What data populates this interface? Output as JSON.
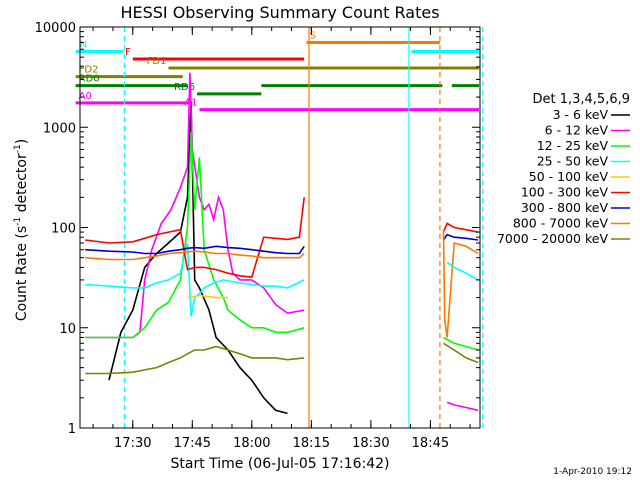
{
  "chart_data": {
    "type": "line",
    "title": "HESSI Observing Summary Count Rates",
    "xlabel": "Start Time (06-Jul-05 17:16:42)",
    "ylabel": "Count Rate (s⁻¹ detector⁻¹)",
    "ylabel_main": "Count Rate (s",
    "ylabel_exp1": "-1",
    "ylabel_mid": " detector",
    "ylabel_exp2": "-1",
    "ylabel_end": ")",
    "yscale": "log",
    "ylim": [
      1,
      10000
    ],
    "xlim": [
      "17:16:42",
      "18:57:30"
    ],
    "xticks": [
      "17:30",
      "17:45",
      "18:00",
      "18:15",
      "18:30",
      "18:45"
    ],
    "yticks": [
      "1",
      "10",
      "100",
      "1000",
      "10000"
    ],
    "legend_title": "Det 1,3,4,5,6,9",
    "legend_placement": "right",
    "footer": "1-Apr-2010 19:12",
    "series": [
      {
        "name": "3 - 6 keV",
        "color": "#000000",
        "points": [
          [
            17.3,
            null
          ],
          [
            17.4,
            3
          ],
          [
            17.45,
            9
          ],
          [
            17.5,
            15
          ],
          [
            17.55,
            40
          ],
          [
            17.6,
            55
          ],
          [
            17.65,
            70
          ],
          [
            17.7,
            90
          ],
          [
            17.73,
            200
          ],
          [
            17.745,
            1800
          ],
          [
            17.76,
            30
          ],
          [
            17.78,
            25
          ],
          [
            17.82,
            15
          ],
          [
            17.85,
            8
          ],
          [
            17.9,
            6
          ],
          [
            17.95,
            4
          ],
          [
            18.0,
            3
          ],
          [
            18.05,
            2
          ],
          [
            18.1,
            1.5
          ],
          [
            18.15,
            1.4
          ],
          [
            18.22,
            null
          ]
        ]
      },
      {
        "name": "6 - 12 keV",
        "color": "#ff00ff",
        "points": [
          [
            17.3,
            8
          ],
          [
            17.5,
            8
          ],
          [
            17.53,
            9
          ],
          [
            17.55,
            30
          ],
          [
            17.58,
            60
          ],
          [
            17.62,
            110
          ],
          [
            17.66,
            150
          ],
          [
            17.7,
            250
          ],
          [
            17.73,
            400
          ],
          [
            17.74,
            3500
          ],
          [
            17.75,
            600
          ],
          [
            17.78,
            200
          ],
          [
            17.8,
            150
          ],
          [
            17.82,
            170
          ],
          [
            17.84,
            120
          ],
          [
            17.86,
            200
          ],
          [
            17.88,
            150
          ],
          [
            17.9,
            60
          ],
          [
            17.92,
            35
          ],
          [
            17.95,
            30
          ],
          [
            18.0,
            30
          ],
          [
            18.05,
            25
          ],
          [
            18.1,
            17
          ],
          [
            18.15,
            14
          ],
          [
            18.22,
            15
          ]
        ]
      },
      {
        "name": "12 - 25 keV",
        "color": "#00ff00",
        "points": [
          [
            17.3,
            8
          ],
          [
            17.4,
            8
          ],
          [
            17.5,
            8
          ],
          [
            17.55,
            10
          ],
          [
            17.6,
            15
          ],
          [
            17.65,
            18
          ],
          [
            17.7,
            30
          ],
          [
            17.73,
            100
          ],
          [
            17.745,
            900
          ],
          [
            17.76,
            150
          ],
          [
            17.78,
            500
          ],
          [
            17.8,
            60
          ],
          [
            17.84,
            30
          ],
          [
            17.88,
            20
          ],
          [
            17.9,
            15
          ],
          [
            17.95,
            12
          ],
          [
            18.0,
            10
          ],
          [
            18.05,
            10
          ],
          [
            18.1,
            9
          ],
          [
            18.15,
            9
          ],
          [
            18.22,
            10
          ]
        ]
      },
      {
        "name": "25 - 50 keV",
        "color": "#00ffff",
        "points": [
          [
            17.3,
            27
          ],
          [
            17.4,
            26
          ],
          [
            17.5,
            25
          ],
          [
            17.55,
            25
          ],
          [
            17.6,
            28
          ],
          [
            17.65,
            30
          ],
          [
            17.7,
            35
          ],
          [
            17.73,
            70
          ],
          [
            17.745,
            13
          ],
          [
            17.76,
            20
          ],
          [
            17.78,
            22
          ],
          [
            17.8,
            25
          ],
          [
            17.84,
            28
          ],
          [
            17.88,
            30
          ],
          [
            17.95,
            28
          ],
          [
            18.0,
            27
          ],
          [
            18.05,
            26
          ],
          [
            18.1,
            26
          ],
          [
            18.15,
            25
          ],
          [
            18.22,
            30
          ]
        ]
      },
      {
        "name": "50 - 100 keV",
        "color": "#ffcc00",
        "points": [
          [
            17.73,
            20
          ],
          [
            17.78,
            21
          ],
          [
            17.85,
            20
          ],
          [
            17.9,
            20
          ]
        ]
      },
      {
        "name": "100 - 300 keV",
        "color": "#ff0000",
        "points": [
          [
            17.3,
            75
          ],
          [
            17.4,
            70
          ],
          [
            17.5,
            72
          ],
          [
            17.55,
            78
          ],
          [
            17.6,
            85
          ],
          [
            17.65,
            90
          ],
          [
            17.7,
            95
          ],
          [
            17.73,
            38
          ],
          [
            17.76,
            40
          ],
          [
            17.8,
            40
          ],
          [
            17.85,
            38
          ],
          [
            17.9,
            35
          ],
          [
            17.95,
            33
          ],
          [
            18.0,
            32
          ],
          [
            18.05,
            80
          ],
          [
            18.1,
            78
          ],
          [
            18.15,
            76
          ],
          [
            18.2,
            80
          ],
          [
            18.22,
            200
          ]
        ]
      },
      {
        "name": "300 - 800 keV",
        "color": "#0000cc",
        "points": [
          [
            17.3,
            60
          ],
          [
            17.4,
            58
          ],
          [
            17.5,
            57
          ],
          [
            17.55,
            55
          ],
          [
            17.6,
            55
          ],
          [
            17.65,
            58
          ],
          [
            17.7,
            60
          ],
          [
            17.73,
            62
          ],
          [
            17.76,
            63
          ],
          [
            17.8,
            62
          ],
          [
            17.85,
            65
          ],
          [
            17.9,
            63
          ],
          [
            17.95,
            62
          ],
          [
            18.0,
            60
          ],
          [
            18.05,
            58
          ],
          [
            18.1,
            56
          ],
          [
            18.15,
            55
          ],
          [
            18.2,
            55
          ],
          [
            18.22,
            65
          ]
        ]
      },
      {
        "name": "800 - 7000 keV",
        "color": "#ff7700",
        "points": [
          [
            17.3,
            50
          ],
          [
            17.4,
            48
          ],
          [
            17.5,
            48
          ],
          [
            17.55,
            50
          ],
          [
            17.6,
            52
          ],
          [
            17.65,
            55
          ],
          [
            17.7,
            56
          ],
          [
            17.73,
            57
          ],
          [
            17.76,
            58
          ],
          [
            17.8,
            57
          ],
          [
            17.85,
            55
          ],
          [
            17.9,
            55
          ],
          [
            17.95,
            53
          ],
          [
            18.0,
            52
          ],
          [
            18.05,
            50
          ],
          [
            18.1,
            50
          ],
          [
            18.15,
            50
          ],
          [
            18.2,
            50
          ],
          [
            18.22,
            55
          ]
        ]
      },
      {
        "name": "7000 - 20000 keV",
        "color": "#808000",
        "points": [
          [
            17.3,
            3.5
          ],
          [
            17.4,
            3.5
          ],
          [
            17.5,
            3.6
          ],
          [
            17.55,
            3.8
          ],
          [
            17.6,
            4
          ],
          [
            17.65,
            4.5
          ],
          [
            17.7,
            5
          ],
          [
            17.73,
            5.5
          ],
          [
            17.76,
            6
          ],
          [
            17.8,
            6
          ],
          [
            17.85,
            6.5
          ],
          [
            17.9,
            6
          ],
          [
            17.95,
            5.5
          ],
          [
            18.0,
            5
          ],
          [
            18.05,
            5
          ],
          [
            18.1,
            5
          ],
          [
            18.15,
            4.8
          ],
          [
            18.22,
            5
          ]
        ]
      }
    ],
    "late_series": [
      {
        "name": "100 - 300 keV",
        "color": "#ff0000",
        "points": [
          [
            18.805,
            90
          ],
          [
            18.82,
            110
          ],
          [
            18.85,
            100
          ],
          [
            18.9,
            95
          ],
          [
            18.95,
            90
          ]
        ]
      },
      {
        "name": "300 - 800 keV",
        "color": "#0000cc",
        "points": [
          [
            18.805,
            75
          ],
          [
            18.82,
            85
          ],
          [
            18.85,
            80
          ],
          [
            18.9,
            78
          ],
          [
            18.95,
            75
          ]
        ]
      },
      {
        "name": "800 - 7000 keV",
        "color": "#ff7700",
        "points": [
          [
            18.805,
            95
          ],
          [
            18.81,
            12
          ],
          [
            18.82,
            8
          ],
          [
            18.85,
            70
          ],
          [
            18.9,
            65
          ],
          [
            18.95,
            55
          ]
        ]
      },
      {
        "name": "25 - 50 keV",
        "color": "#00ffff",
        "points": [
          [
            18.805,
            null
          ],
          [
            18.82,
            45
          ],
          [
            18.85,
            40
          ],
          [
            18.9,
            35
          ],
          [
            18.95,
            30
          ]
        ]
      },
      {
        "name": "7000 - 20000 keV",
        "color": "#808000",
        "points": [
          [
            18.805,
            7
          ],
          [
            18.85,
            6
          ],
          [
            18.9,
            5
          ],
          [
            18.95,
            4.5
          ]
        ]
      },
      {
        "name": "12 - 25 keV",
        "color": "#00ff00",
        "points": [
          [
            18.805,
            8
          ],
          [
            18.85,
            7
          ],
          [
            18.9,
            6.5
          ],
          [
            18.95,
            6
          ]
        ]
      },
      {
        "name": "6 - 12 keV",
        "color": "#ff00ff",
        "points": [
          [
            18.82,
            1.8
          ],
          [
            18.85,
            1.7
          ],
          [
            18.9,
            1.6
          ],
          [
            18.95,
            1.5
          ]
        ]
      }
    ],
    "flag_bars": [
      {
        "label": "N",
        "color": "#00ffff",
        "y": 5700,
        "segments": [
          [
            17.26,
            17.46
          ],
          [
            18.67,
            19.0
          ]
        ]
      },
      {
        "label": "F",
        "color": "#ff0000",
        "y": 4800,
        "segments": [
          [
            17.5,
            18.22
          ]
        ]
      },
      {
        "label": "S",
        "color": "#ff7700",
        "y": 7000,
        "segments": [
          [
            18.23,
            18.79
          ]
        ]
      },
      {
        "label": "FD1",
        "color": "#808000",
        "y": 3900,
        "segments": [
          [
            17.65,
            18.96
          ]
        ]
      },
      {
        "label": "FD2",
        "color": "#808000",
        "y": 3200,
        "segments": [
          [
            17.26,
            17.71
          ]
        ]
      },
      {
        "label": "RD0",
        "color": "#008000",
        "y": 2600,
        "segments": [
          [
            17.26,
            17.73
          ],
          [
            18.04,
            18.8
          ],
          [
            18.84,
            18.96
          ]
        ]
      },
      {
        "label": "RD6",
        "color": "#008000",
        "y": 2150,
        "segments": [
          [
            17.77,
            18.04
          ]
        ]
      },
      {
        "label": "A0",
        "color": "#ff00ff",
        "y": 1750,
        "segments": [
          [
            17.26,
            17.75
          ]
        ]
      },
      {
        "label": "A1",
        "color": "#ff00ff",
        "y": 1500,
        "segments": [
          [
            17.78,
            18.96
          ]
        ]
      }
    ],
    "markers": [
      {
        "t": 17.465,
        "color": "#00ffff",
        "style": "dashed"
      },
      {
        "t": 18.24,
        "color": "#ff7700",
        "style": "solid"
      },
      {
        "t": 18.66,
        "color": "#00ffff",
        "style": "solid"
      },
      {
        "t": 18.79,
        "color": "#ff7700",
        "style": "dashed"
      },
      {
        "t": 18.97,
        "color": "#00ffff",
        "style": "dashed"
      }
    ]
  }
}
